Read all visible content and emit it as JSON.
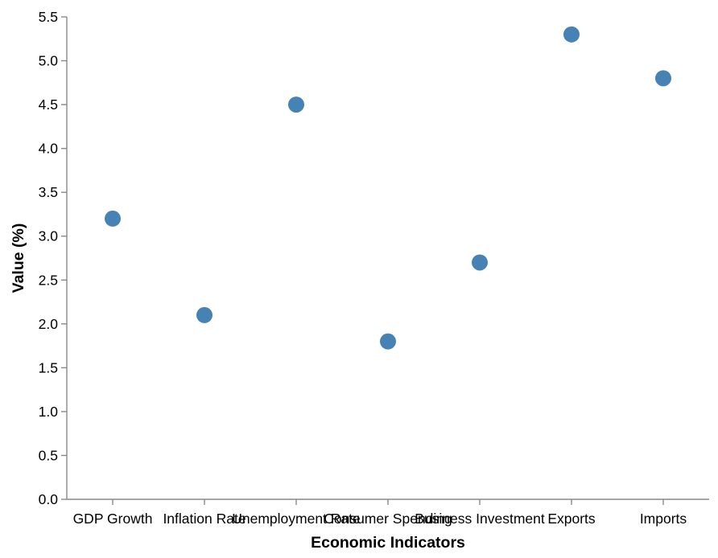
{
  "chart_data": {
    "type": "scatter",
    "title": "",
    "xlabel": "Economic Indicators",
    "ylabel": "Value (%)",
    "categories": [
      "GDP Growth",
      "Inflation Rate",
      "Unemployment Rate",
      "Consumer Spending",
      "Business Investment",
      "Exports",
      "Imports"
    ],
    "series": [
      {
        "values": [
          3.2,
          2.1,
          4.5,
          1.8,
          2.7,
          5.3,
          4.8
        ]
      }
    ],
    "ylim": [
      0,
      5.5
    ],
    "yticks": [
      0.0,
      0.5,
      1.0,
      1.5,
      2.0,
      2.5,
      3.0,
      3.5,
      4.0,
      4.5,
      5.0,
      5.5
    ],
    "grid": false,
    "legend": "none",
    "colors": {
      "point": "#4682b4",
      "axis": "#888888"
    }
  }
}
